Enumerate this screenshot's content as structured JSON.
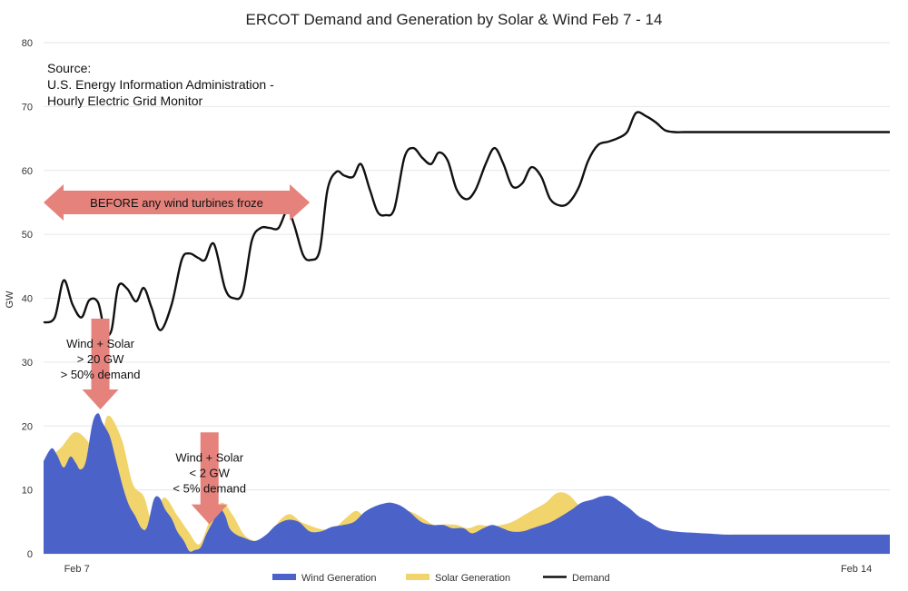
{
  "chart_data": {
    "type": "area",
    "title": "ERCOT Demand and Generation by Solar & Wind Feb 7 - 14",
    "ylabel": "GW",
    "xlabel": "",
    "ylim": [
      0,
      80
    ],
    "yticks": [
      0,
      10,
      20,
      30,
      40,
      50,
      60,
      70,
      80
    ],
    "xlim": [
      6.75,
      14.35
    ],
    "xticks": [
      {
        "x": 7,
        "label": "Feb 7"
      },
      {
        "x": 14,
        "label": "Feb 14"
      }
    ],
    "grid": true,
    "legend_position": "bottom-center",
    "source_lines": [
      "Source:",
      "U.S. Energy Information Administration -",
      "Hourly Electric Grid Monitor"
    ],
    "series": [
      {
        "name": "Wind Generation",
        "color": "#4b63c8",
        "kind": "area",
        "x": [
          6.75,
          6.82,
          6.87,
          6.93,
          6.99,
          7.04,
          7.08,
          7.13,
          7.19,
          7.24,
          7.28,
          7.33,
          7.36,
          7.41,
          7.47,
          7.52,
          7.57,
          7.63,
          7.68,
          7.74,
          7.79,
          7.84,
          7.9,
          7.95,
          8.01,
          8.06,
          8.11,
          8.16,
          8.21,
          8.27,
          8.33,
          8.38,
          8.42,
          8.48,
          8.55,
          8.65,
          8.75,
          8.84,
          8.94,
          9.04,
          9.14,
          9.24,
          9.34,
          9.44,
          9.54,
          9.63,
          9.71,
          9.79,
          9.87,
          9.96,
          10.04,
          10.14,
          10.24,
          10.34,
          10.42,
          10.52,
          10.6,
          10.7,
          10.78,
          10.87,
          10.95,
          11.05,
          11.14,
          11.23,
          11.31,
          11.41,
          11.5,
          11.58,
          11.68,
          11.76,
          11.85,
          11.94,
          12.02,
          12.1,
          12.19,
          12.28,
          12.38,
          12.48,
          12.58,
          12.68,
          12.78,
          12.88,
          12.96,
          13.04,
          13.13,
          13.2,
          13.28,
          13.36,
          13.46,
          13.56,
          13.65,
          13.75,
          13.84,
          13.93,
          14.03,
          14.12,
          14.2,
          14.28,
          14.35
        ],
        "values": [
          14.5,
          16.5,
          15.5,
          13.5,
          15.2,
          14.2,
          13.2,
          14.5,
          20.5,
          22,
          20.5,
          19,
          17.5,
          14,
          10,
          7.5,
          6,
          4,
          4.2,
          8.5,
          8.8,
          7,
          5.5,
          3.5,
          2,
          0.4,
          0.6,
          1,
          3,
          5,
          7,
          6,
          4,
          3,
          2.5,
          2,
          3,
          4.5,
          5.3,
          5,
          3.5,
          3.5,
          4.2,
          4.5,
          5,
          6.5,
          7.3,
          7.8,
          8,
          7.5,
          6.5,
          5,
          4.5,
          4.5,
          4,
          4,
          3.2,
          4,
          4.5,
          4,
          3.5,
          3.5,
          4,
          4.5,
          5,
          6,
          7,
          8,
          8.5,
          9,
          9,
          8,
          7,
          5.8,
          5,
          4,
          3.6,
          3.4,
          3.3,
          3.2,
          3.1,
          3,
          3,
          3,
          3,
          3,
          3,
          3,
          3,
          3,
          3,
          3,
          3,
          3,
          3,
          3,
          3,
          3,
          3
        ],
        "end_x": 14.35
      },
      {
        "name": "Solar Generation",
        "color": "#f2d46c",
        "kind": "area",
        "x": [
          6.75,
          6.9,
          7.03,
          7.15,
          7.24,
          7.32,
          7.45,
          7.55,
          7.65,
          7.73,
          7.83,
          7.95,
          8.05,
          8.15,
          8.25,
          8.35,
          8.45,
          8.55,
          8.65,
          8.75,
          8.86,
          8.96,
          9.06,
          9.16,
          9.26,
          9.36,
          9.46,
          9.56,
          9.66,
          9.76,
          9.86,
          9.96,
          10.06,
          10.16,
          10.26,
          10.36,
          10.46,
          10.56,
          10.66,
          10.76,
          10.86,
          10.96,
          11.06,
          11.16,
          11.26,
          11.36,
          11.46,
          11.56,
          11.66,
          11.76,
          11.86,
          11.96,
          12.06,
          12.16,
          12.26,
          12.36,
          12.46,
          12.56,
          12.66,
          12.76,
          12.86,
          12.96,
          13.06,
          13.16,
          13.26,
          13.36,
          13.46,
          13.56,
          13.66,
          13.76,
          13.86,
          13.96,
          14.06,
          14.16,
          14.26,
          14.35
        ],
        "values": [
          14.5,
          16.5,
          19,
          17.5,
          14,
          21.5,
          18,
          11,
          9,
          5,
          8.8,
          6,
          3.5,
          1.5,
          5.5,
          8,
          6,
          3,
          2,
          2,
          5,
          6.2,
          5,
          4.3,
          3.8,
          4,
          5.5,
          6.7,
          5.5,
          7.5,
          7.8,
          7,
          6.5,
          5.5,
          4.5,
          4.6,
          4.5,
          4,
          4.5,
          4.3,
          4.5,
          5,
          6,
          7,
          8,
          9.5,
          9.3,
          7.5,
          5.8,
          5,
          4,
          3.6,
          3.4,
          3.3,
          3.2,
          3.1,
          3,
          3,
          3,
          3,
          3,
          3,
          3,
          3,
          3,
          3,
          3,
          3,
          3,
          3,
          3,
          3,
          3,
          3,
          3,
          3
        ]
      },
      {
        "name": "Demand",
        "color": "#111111",
        "kind": "line",
        "x": [
          6.75,
          6.85,
          6.93,
          7.01,
          7.09,
          7.16,
          7.24,
          7.3,
          7.36,
          7.42,
          7.5,
          7.58,
          7.65,
          7.72,
          7.8,
          7.9,
          7.99,
          8.06,
          8.14,
          8.2,
          8.28,
          8.38,
          8.46,
          8.54,
          8.62,
          8.7,
          8.78,
          8.86,
          8.94,
          9.0,
          9.08,
          9.15,
          9.23,
          9.3,
          9.38,
          9.45,
          9.53,
          9.6,
          9.68,
          9.75,
          9.82,
          9.9,
          9.99,
          10.07,
          10.15,
          10.23,
          10.3,
          10.38,
          10.46,
          10.55,
          10.63,
          10.72,
          10.8,
          10.88,
          10.96,
          11.05,
          11.13,
          11.22,
          11.3,
          11.39,
          11.47,
          11.56,
          11.64,
          11.73,
          11.82,
          11.9,
          11.99,
          12.07,
          12.16,
          12.25,
          12.33,
          12.42,
          12.5,
          12.59,
          12.67,
          12.76,
          12.84,
          12.93,
          13.01,
          13.1,
          13.18,
          13.27,
          13.35,
          13.44,
          13.52,
          13.61,
          13.69,
          13.78,
          13.86,
          13.95,
          14.03,
          14.12,
          14.2,
          14.28,
          14.35
        ],
        "values": [
          36.2,
          37,
          42.8,
          39,
          37,
          39.7,
          39.3,
          34.8,
          35,
          41.8,
          41.5,
          39.5,
          41.6,
          38.5,
          35,
          39,
          46,
          47,
          46.3,
          46,
          48.5,
          41.5,
          40,
          41,
          49,
          51,
          51,
          51,
          53.8,
          51.5,
          46.8,
          46,
          47.5,
          57,
          59.8,
          59.2,
          59,
          61,
          57,
          53.5,
          53,
          54,
          62,
          63.5,
          62,
          61,
          62.8,
          61.5,
          57,
          55.5,
          57,
          61,
          63.5,
          61,
          57.5,
          58,
          60.5,
          59,
          55.5,
          54.5,
          55,
          57.5,
          61.5,
          64,
          64.5,
          65,
          66,
          69,
          68.5,
          67.5,
          66.3,
          66,
          66,
          66,
          66,
          66,
          66,
          66,
          66,
          66,
          66,
          66,
          66,
          66,
          66,
          66,
          66,
          66,
          66,
          66,
          66,
          66,
          66,
          66,
          66
        ]
      }
    ],
    "annotations": [
      {
        "kind": "double-arrow",
        "text": "BEFORE any wind turbines froze",
        "x0": 6.75,
        "x1": 9.14,
        "y": 55
      },
      {
        "kind": "down-arrow",
        "lines": [
          "Wind + Solar",
          "> 20 GW",
          "> 50% demand"
        ],
        "x": 7.26,
        "y_top": 36.8,
        "y_tip": 22.6
      },
      {
        "kind": "down-arrow",
        "lines": [
          "Wind + Solar",
          "< 2 GW",
          "< 5% demand"
        ],
        "x": 8.24,
        "y_top": 19,
        "y_tip": 4.6
      }
    ]
  }
}
